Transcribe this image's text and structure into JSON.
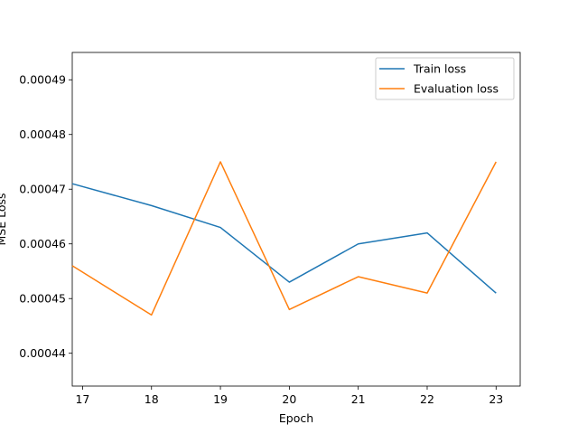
{
  "chart_data": {
    "type": "line",
    "title": "",
    "xlabel": "Epoch",
    "ylabel": "MSE Loss",
    "x": [
      16.85,
      18,
      19,
      20,
      21,
      22,
      23
    ],
    "xlim": [
      16.85,
      23.35
    ],
    "ylim": [
      0.000434,
      0.000495
    ],
    "xticks": [
      17,
      18,
      19,
      20,
      21,
      22,
      23
    ],
    "xtick_labels": [
      "17",
      "18",
      "19",
      "20",
      "21",
      "22",
      "23"
    ],
    "yticks": [
      0.00044,
      0.00045,
      0.00046,
      0.00047,
      0.00048,
      0.00049
    ],
    "ytick_labels": [
      "0.00044",
      "0.00045",
      "0.00046",
      "0.00047",
      "0.00048",
      "0.00049"
    ],
    "grid": false,
    "legend_position": "top-right",
    "series": [
      {
        "name": "Train loss",
        "color": "#1f77b4",
        "values": [
          0.000471,
          0.000467,
          0.000463,
          0.000453,
          0.00046,
          0.000462,
          0.000451
        ]
      },
      {
        "name": "Evaluation loss",
        "color": "#ff7f0e",
        "values": [
          0.000456,
          0.000447,
          0.000475,
          0.000448,
          0.000454,
          0.000451,
          0.000475
        ]
      }
    ]
  }
}
